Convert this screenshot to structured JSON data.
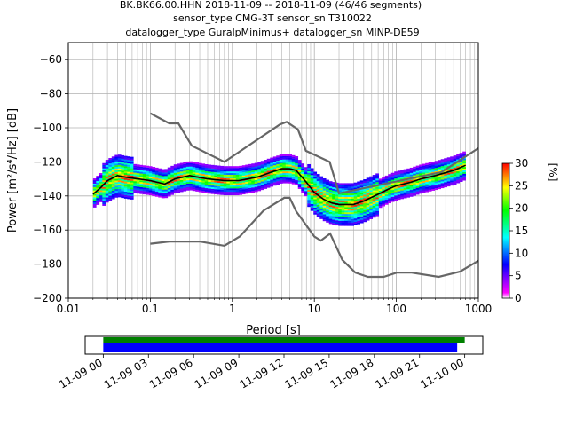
{
  "title": {
    "line1": "BK.BK66.00.HHN   2018-11-09 -- 2018-11-09  (46/46 segments)",
    "line2": "sensor_type CMG-3T sensor_sn T310022",
    "line3": "datalogger_type GuralpMinimus+ datalogger_sn MINP-DE59"
  },
  "chart_data": [
    {
      "type": "heatmap",
      "xlabel": "Period [s]",
      "ylabel": "Power [m²/s⁴/Hz] [dB]",
      "x_scale": "log",
      "xlim": [
        0.01,
        1000
      ],
      "ylim": [
        -200,
        -50
      ],
      "x_ticks": [
        0.01,
        0.1,
        1,
        10,
        100,
        1000
      ],
      "x_tick_labels": [
        "0.01",
        "0.1",
        "1",
        "10",
        "100",
        "1000"
      ],
      "y_ticks": [
        -200,
        -180,
        -160,
        -140,
        -120,
        -100,
        -80,
        -60
      ],
      "y_tick_labels": [
        "−200",
        "−180",
        "−160",
        "−140",
        "−120",
        "−100",
        "−80",
        "−60"
      ],
      "grid": true,
      "colorbar": {
        "label": "[%]",
        "range": [
          0,
          30
        ],
        "ticks": [
          0,
          5,
          10,
          15,
          20,
          25,
          30
        ],
        "tick_labels": [
          "0",
          "5",
          "10",
          "15",
          "20",
          "25",
          "30"
        ]
      },
      "mode_curve": {
        "period": [
          0.02,
          0.025,
          0.03,
          0.04,
          0.05,
          0.07,
          0.1,
          0.15,
          0.2,
          0.3,
          0.5,
          0.8,
          1.2,
          2,
          3,
          4,
          5,
          6,
          8,
          10,
          13,
          16,
          20,
          25,
          30,
          40,
          60,
          80,
          100,
          150,
          200,
          300,
          500,
          700
        ],
        "power": [
          -139,
          -135,
          -131,
          -128,
          -129,
          -130,
          -131,
          -133,
          -130,
          -128,
          -130,
          -131,
          -131,
          -129,
          -126,
          -124,
          -124,
          -125,
          -132,
          -138,
          -142,
          -144,
          -145,
          -145,
          -145,
          -143,
          -139,
          -136,
          -134,
          -132,
          -130,
          -128,
          -125,
          -122
        ]
      },
      "noise_models": [
        {
          "period": [
            0.1,
            0.17,
            0.22,
            0.32,
            0.8,
            3.8,
            4.6,
            6.3,
            7.9,
            15.4,
            20,
            354.8,
            1000
          ],
          "power": [
            -91.5,
            -97.4,
            -97.4,
            -110.5,
            -120,
            -98,
            -96.5,
            -101,
            -113.5,
            -120,
            -138.5,
            -126,
            -112
          ]
        },
        {
          "period": [
            0.1,
            0.17,
            0.4,
            0.8,
            1.24,
            2.4,
            4.3,
            5,
            6,
            10,
            12,
            15.6,
            21.9,
            31.6,
            45,
            70,
            101,
            154,
            328,
            600,
            1000
          ],
          "power": [
            -168,
            -166.7,
            -166.7,
            -169.2,
            -163.7,
            -148.6,
            -141.1,
            -141.1,
            -149,
            -163.8,
            -166.2,
            -162.1,
            -177.5,
            -185,
            -187.5,
            -187.5,
            -185,
            -185,
            -187.5,
            -184.4,
            -178
          ]
        }
      ]
    },
    {
      "type": "bar",
      "x_tick_labels": [
        "11-09 00",
        "11-09 03",
        "11-09 06",
        "11-09 09",
        "11-09 12",
        "11-09 15",
        "11-09 18",
        "11-09 21",
        "11-10 00"
      ],
      "xlim_hours": [
        -1.2,
        25.2
      ],
      "series": [
        {
          "start_hour": 0,
          "end_hour": 24,
          "color": "#008000"
        },
        {
          "start_hour": 0,
          "end_hour": 23.5,
          "color": "#0000ff"
        }
      ]
    }
  ]
}
